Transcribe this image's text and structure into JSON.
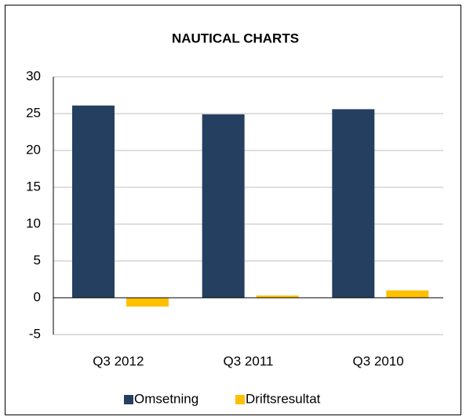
{
  "chart_data": {
    "type": "bar",
    "title": "NAUTICAL CHARTS",
    "categories": [
      "Q3 2012",
      "Q3 2011",
      "Q3 2010"
    ],
    "series": [
      {
        "name": "Omsetning",
        "color": "#243f60",
        "values": [
          26.1,
          24.9,
          25.6
        ]
      },
      {
        "name": "Driftsresultat",
        "color": "#ffc000",
        "values": [
          -1.2,
          0.3,
          1.0
        ]
      }
    ],
    "ylim": [
      -5,
      30
    ],
    "yticks": [
      -5,
      0,
      5,
      10,
      15,
      20,
      25,
      30
    ],
    "grid": true,
    "legend": "bottom"
  }
}
